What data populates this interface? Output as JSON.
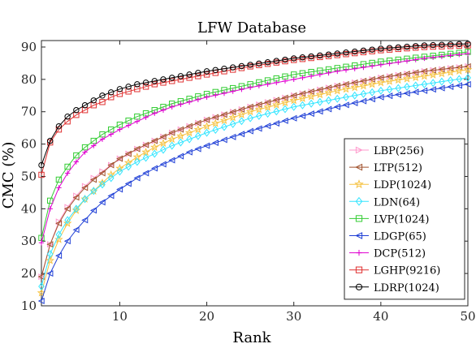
{
  "chart_data": {
    "type": "line",
    "title": "LFW Database",
    "xlabel": "Rank",
    "ylabel": "CMC (%)",
    "xlim": [
      1,
      50
    ],
    "ylim": [
      10,
      92
    ],
    "xticks": [
      10,
      20,
      30,
      40,
      50
    ],
    "yticks": [
      10,
      20,
      30,
      40,
      50,
      60,
      70,
      80,
      90
    ],
    "grid": false,
    "legend_position": "bottom-right",
    "x_note": "Each series is sampled at every integer rank from 1 to 50; values listed are at ranks 1,2,3,4,5,6,7,8,9,10,12,14,16,18,20,25,30,35,40,45,50 in x_sample order.",
    "x_sample": [
      1,
      2,
      3,
      4,
      5,
      6,
      7,
      8,
      9,
      10,
      12,
      14,
      16,
      18,
      20,
      25,
      30,
      35,
      40,
      45,
      50
    ],
    "series": [
      {
        "name": "LBP(256)",
        "color": "#ff99cc",
        "marker": "triangle-right",
        "values": [
          19,
          29,
          36,
          40.5,
          44,
          47,
          49.5,
          51.5,
          53.5,
          55.5,
          58.5,
          61,
          63.5,
          65.5,
          67.5,
          71.5,
          75,
          78,
          80.5,
          82.5,
          84
        ]
      },
      {
        "name": "LTP(512)",
        "color": "#a0522d",
        "marker": "triangle-left",
        "values": [
          19,
          29,
          35.5,
          40,
          43.5,
          46.5,
          49,
          51,
          53.5,
          55.5,
          58.5,
          61,
          63.5,
          65.5,
          67.5,
          71.5,
          75,
          78,
          80.5,
          82.5,
          84
        ]
      },
      {
        "name": "LDP(1024)",
        "color": "#f5c242",
        "marker": "star",
        "values": [
          14,
          24,
          30.5,
          35.5,
          39.5,
          43,
          45.5,
          48,
          50.5,
          52.5,
          56,
          59,
          61.5,
          63.5,
          65.5,
          70,
          73.5,
          76.5,
          79,
          81,
          83
        ]
      },
      {
        "name": "LDN(64)",
        "color": "#33e5ff",
        "marker": "diamond",
        "values": [
          16,
          26,
          32,
          36.5,
          40,
          43,
          45.5,
          47.5,
          49.5,
          51.5,
          54.5,
          57,
          59.5,
          61.5,
          63.5,
          68,
          71.5,
          74,
          76.5,
          78.5,
          80.5
        ]
      },
      {
        "name": "LVP(1024)",
        "color": "#33cc33",
        "marker": "square",
        "values": [
          31,
          42.5,
          49,
          53,
          56.5,
          59,
          61,
          63,
          64.5,
          66,
          68.5,
          70.5,
          72.5,
          74,
          75.5,
          78.5,
          81.5,
          83.5,
          85.5,
          87,
          88.5
        ]
      },
      {
        "name": "LDGP(65)",
        "color": "#1f3fd6",
        "marker": "triangle-left",
        "values": [
          11.5,
          20,
          25.5,
          30,
          33.5,
          36.5,
          39.5,
          42,
          44,
          46,
          49.5,
          52.5,
          55,
          57.5,
          59.5,
          64,
          68,
          71.5,
          74.5,
          76.5,
          78.5
        ]
      },
      {
        "name": "DCP(512)",
        "color": "#e000d0",
        "marker": "plus",
        "values": [
          29.5,
          40,
          46.5,
          51,
          54.5,
          57.5,
          59.5,
          61.5,
          63,
          64.5,
          67,
          69.5,
          71.5,
          73,
          74.5,
          77.5,
          80,
          82.5,
          84.5,
          86.5,
          88
        ]
      },
      {
        "name": "LGHP(9216)",
        "color": "#e03030",
        "marker": "square",
        "values": [
          50.5,
          60.5,
          64.5,
          67,
          69,
          70.5,
          72,
          73,
          74.5,
          75.5,
          77,
          78.5,
          79.5,
          80.5,
          81.5,
          84,
          86,
          87.5,
          89,
          90,
          90.5
        ]
      },
      {
        "name": "LDRP(1024)",
        "color": "#000000",
        "marker": "circle",
        "values": [
          53.5,
          61,
          65.5,
          68.5,
          70.5,
          72,
          73.5,
          75,
          76,
          77,
          78.5,
          79.5,
          80.5,
          81.5,
          82.5,
          84.5,
          86.5,
          88,
          89.5,
          90.5,
          91
        ]
      }
    ]
  }
}
